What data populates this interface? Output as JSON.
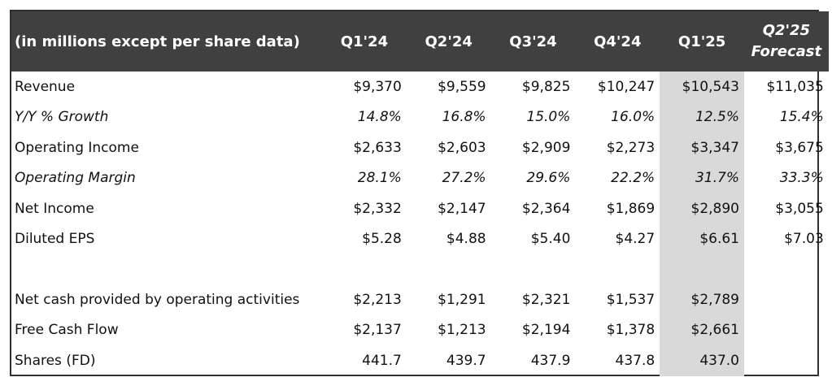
{
  "header": {
    "label": "(in millions except per share data)",
    "columns": [
      "Q1'24",
      "Q2'24",
      "Q3'24",
      "Q4'24",
      "Q1'25"
    ],
    "forecast_line1": "Q2'25",
    "forecast_line2": "Forecast"
  },
  "rows": [
    {
      "label": "Revenue",
      "italic": false,
      "values": [
        "$9,370",
        "$9,559",
        "$9,825",
        "$10,247",
        "$10,543",
        "$11,035"
      ]
    },
    {
      "label": "Y/Y % Growth",
      "italic": true,
      "values": [
        "14.8%",
        "16.8%",
        "15.0%",
        "16.0%",
        "12.5%",
        "15.4%"
      ]
    },
    {
      "label": "Operating Income",
      "italic": false,
      "values": [
        "$2,633",
        "$2,603",
        "$2,909",
        "$2,273",
        "$3,347",
        "$3,675"
      ]
    },
    {
      "label": "Operating Margin",
      "italic": true,
      "values": [
        "28.1%",
        "27.2%",
        "29.6%",
        "22.2%",
        "31.7%",
        "33.3%"
      ]
    },
    {
      "label": "Net Income",
      "italic": false,
      "values": [
        "$2,332",
        "$2,147",
        "$2,364",
        "$1,869",
        "$2,890",
        "$3,055"
      ]
    },
    {
      "label": "Diluted EPS",
      "italic": false,
      "values": [
        "$5.28",
        "$4.88",
        "$5.40",
        "$4.27",
        "$6.61",
        "$7.03"
      ]
    },
    {
      "spacer": true
    },
    {
      "label": "Net cash provided by operating activities",
      "italic": false,
      "values": [
        "$2,213",
        "$1,291",
        "$2,321",
        "$1,537",
        "$2,789",
        ""
      ]
    },
    {
      "label": "Free Cash Flow",
      "italic": false,
      "values": [
        "$2,137",
        "$1,213",
        "$2,194",
        "$1,378",
        "$2,661",
        ""
      ]
    },
    {
      "label": "Shares (FD)",
      "italic": false,
      "values": [
        "441.7",
        "439.7",
        "437.9",
        "437.8",
        "437.0",
        ""
      ]
    }
  ],
  "colors": {
    "header_bg": "#404040",
    "highlight_bg": "#d9d9d9"
  }
}
